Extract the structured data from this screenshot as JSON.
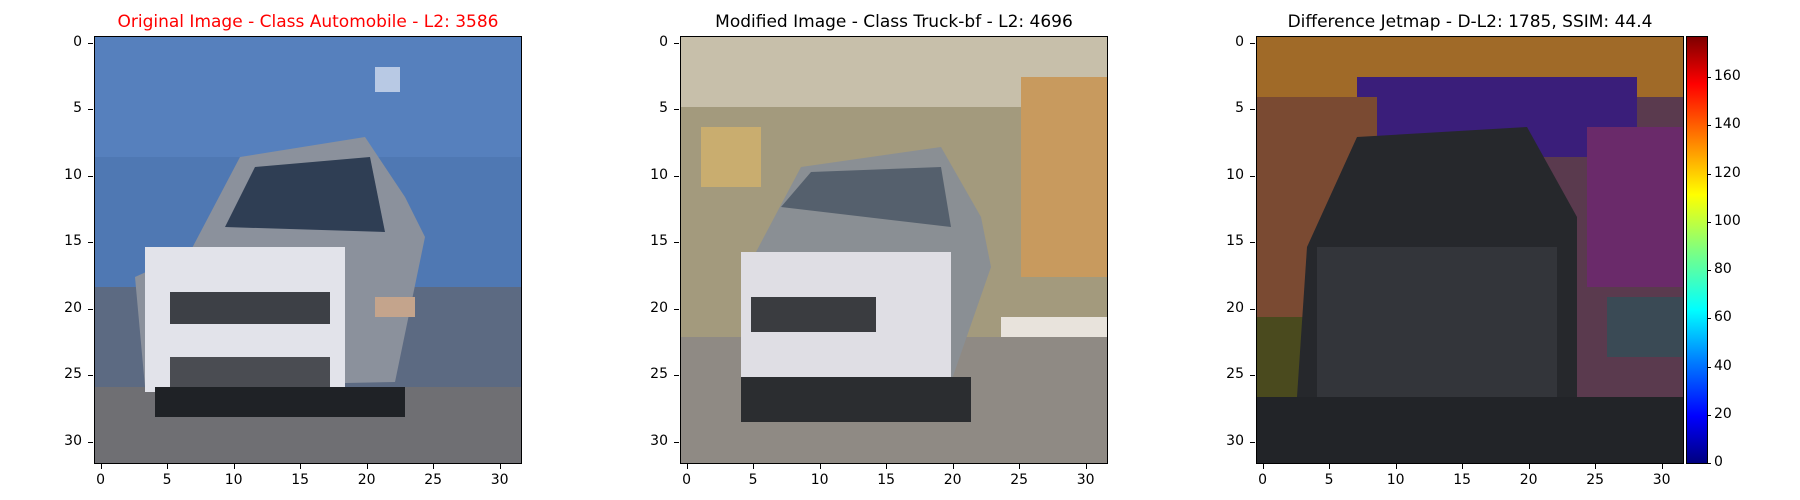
{
  "panels": [
    {
      "title": "Original Image - Class Automobile - L2: 3586",
      "title_color": "#ff0000"
    },
    {
      "title": "Modified Image - Class Truck-bf - L2: 4696",
      "title_color": "#000000"
    },
    {
      "title": "Difference Jetmap - D-L2: 1785, SSIM: 44.4",
      "title_color": "#000000"
    }
  ],
  "axis_ticks": [
    "0",
    "5",
    "10",
    "15",
    "20",
    "25",
    "30"
  ],
  "axis_range": [
    0,
    31
  ],
  "colorbar_ticks": [
    "0",
    "20",
    "40",
    "60",
    "80",
    "100",
    "120",
    "140",
    "160"
  ],
  "colorbar_range": [
    0,
    177
  ],
  "image_descriptions": {
    "original": "pixelated 32x32 image of a white car on a blue background",
    "modified": "pixelated 32x32 image of a white car on a yellowish textured background",
    "difference": "jet colormap difference, dark car region with purple and orange background"
  }
}
